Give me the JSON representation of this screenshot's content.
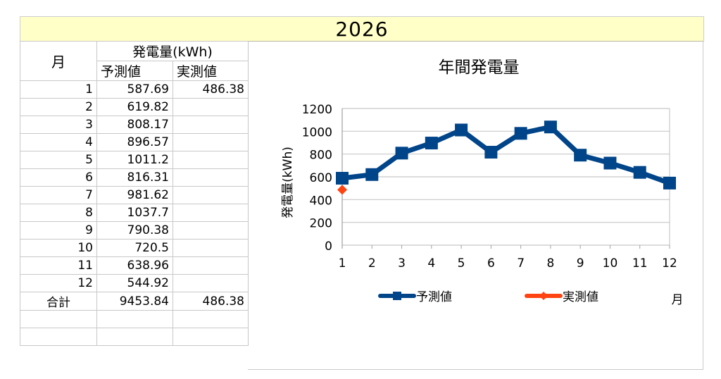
{
  "sheet": {
    "year_title": "2026",
    "table": {
      "header_month": "月",
      "header_power": "発電量(kWh)",
      "header_forecast": "予測値",
      "header_actual": "実測値",
      "rows": [
        {
          "month": "1",
          "forecast": "587.69",
          "actual": "486.38"
        },
        {
          "month": "2",
          "forecast": "619.82",
          "actual": ""
        },
        {
          "month": "3",
          "forecast": "808.17",
          "actual": ""
        },
        {
          "month": "4",
          "forecast": "896.57",
          "actual": ""
        },
        {
          "month": "5",
          "forecast": "1011.2",
          "actual": ""
        },
        {
          "month": "6",
          "forecast": "816.31",
          "actual": ""
        },
        {
          "month": "7",
          "forecast": "981.62",
          "actual": ""
        },
        {
          "month": "8",
          "forecast": "1037.7",
          "actual": ""
        },
        {
          "month": "9",
          "forecast": "790.38",
          "actual": ""
        },
        {
          "month": "10",
          "forecast": "720.5",
          "actual": ""
        },
        {
          "month": "11",
          "forecast": "638.96",
          "actual": ""
        },
        {
          "month": "12",
          "forecast": "544.92",
          "actual": ""
        }
      ],
      "total": {
        "label": "合計",
        "forecast": "9453.84",
        "actual": "486.38"
      }
    }
  },
  "colors": {
    "forecast": "#004489",
    "actual": "#ff4411",
    "header_bg": "#ffffc8",
    "grid": "#c8c8c8"
  },
  "chart_data": {
    "type": "line",
    "title": "年間発電量",
    "xlabel": "月",
    "ylabel": "発電量(kWh)",
    "categories": [
      "1",
      "2",
      "3",
      "4",
      "5",
      "6",
      "7",
      "8",
      "9",
      "10",
      "11",
      "12"
    ],
    "series": [
      {
        "name": "予測値",
        "color": "#004489",
        "marker": "square",
        "values": [
          587.69,
          619.82,
          808.17,
          896.57,
          1011.2,
          816.31,
          981.62,
          1037.7,
          790.38,
          720.5,
          638.96,
          544.92
        ]
      },
      {
        "name": "実測値",
        "color": "#ff4411",
        "marker": "diamond",
        "values": [
          486.38,
          null,
          null,
          null,
          null,
          null,
          null,
          null,
          null,
          null,
          null,
          null
        ]
      }
    ],
    "yticks": [
      0,
      200,
      400,
      600,
      800,
      1000,
      1200
    ],
    "ylim": [
      0,
      1200
    ],
    "grid": true,
    "legend_position": "bottom"
  }
}
